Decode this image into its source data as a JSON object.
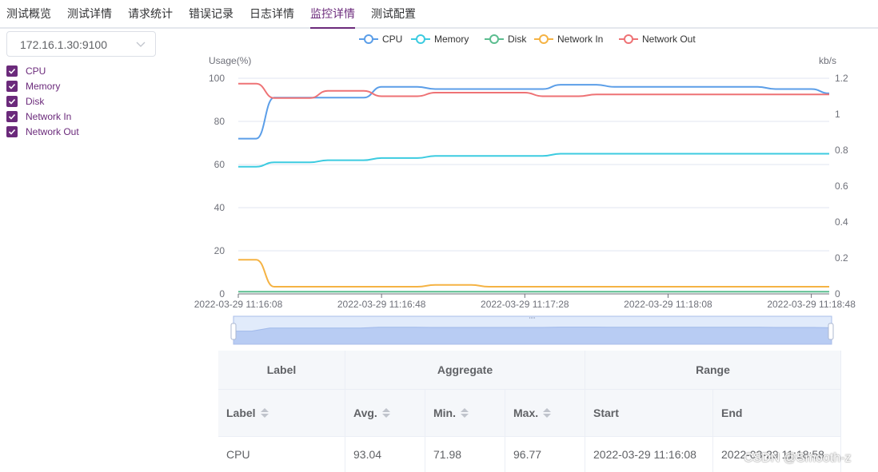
{
  "tabs": [
    "测试概览",
    "测试详情",
    "请求统计",
    "错误记录",
    "日志详情",
    "监控详情",
    "测试配置"
  ],
  "active_tab": "监控详情",
  "server_select": {
    "value": "172.16.1.30:9100"
  },
  "metrics_checkboxes": [
    {
      "label": "CPU",
      "checked": true
    },
    {
      "label": "Memory",
      "checked": true
    },
    {
      "label": "Disk",
      "checked": true
    },
    {
      "label": "Network In",
      "checked": true
    },
    {
      "label": "Network Out",
      "checked": true
    }
  ],
  "colors": {
    "accent": "#6b2a7b",
    "cpu": "#5b9ee8",
    "memory": "#3ccbe0",
    "disk": "#5bbd8f",
    "network_in": "#f5b344",
    "network_out": "#ee7275"
  },
  "chart_data": {
    "type": "line",
    "ylabel_left": "Usage(%)",
    "ylabel_right": "kb/s",
    "ylim_left": [
      0,
      100
    ],
    "ylim_right": [
      0,
      1.2
    ],
    "yticks_left": [
      "0",
      "20",
      "40",
      "60",
      "80",
      "100"
    ],
    "yticks_right": [
      "0",
      "0.2",
      "0.4",
      "0.6",
      "0.8",
      "1",
      "1.2"
    ],
    "x_tick_labels": [
      "2022-03-29 11:16:08",
      "2022-03-29 11:16:48",
      "2022-03-29 11:17:28",
      "2022-03-29 11:18:08",
      "2022-03-29 11:18:48"
    ],
    "x": [
      "11:16:08",
      "11:16:13",
      "11:16:18",
      "11:16:23",
      "11:16:28",
      "11:16:33",
      "11:16:38",
      "11:16:43",
      "11:16:48",
      "11:16:53",
      "11:16:58",
      "11:17:03",
      "11:17:08",
      "11:17:13",
      "11:17:18",
      "11:17:23",
      "11:17:28",
      "11:17:33",
      "11:17:38",
      "11:17:43",
      "11:17:48",
      "11:17:53",
      "11:17:58",
      "11:18:03",
      "11:18:08",
      "11:18:13",
      "11:18:18",
      "11:18:23",
      "11:18:28",
      "11:18:33",
      "11:18:38",
      "11:18:43",
      "11:18:48",
      "11:18:53"
    ],
    "legend_position": "top",
    "grid": true,
    "series": [
      {
        "name": "CPU",
        "axis": "left",
        "values": [
          72,
          72,
          91,
          91,
          91,
          91,
          91,
          91,
          96,
          96,
          96,
          95,
          95,
          95,
          95,
          95,
          95,
          95,
          97,
          97,
          97,
          96,
          96,
          96,
          96,
          96,
          96,
          96,
          96,
          96,
          95,
          95,
          95,
          93
        ]
      },
      {
        "name": "Memory",
        "axis": "left",
        "values": [
          59,
          59,
          61,
          61,
          61,
          62,
          62,
          62,
          63,
          63,
          63,
          64,
          64,
          64,
          64,
          64,
          64,
          64,
          65,
          65,
          65,
          65,
          65,
          65,
          65,
          65,
          65,
          65,
          65,
          65,
          65,
          65,
          65,
          65
        ]
      },
      {
        "name": "Disk",
        "axis": "left",
        "values": [
          1,
          1,
          1,
          1,
          1,
          1,
          1,
          1,
          1,
          1,
          1,
          1,
          1,
          1,
          1,
          1,
          1,
          1,
          1,
          1,
          1,
          1,
          1,
          1,
          1,
          1,
          1,
          1,
          1,
          1,
          1,
          1,
          1,
          1
        ]
      },
      {
        "name": "Network In",
        "axis": "right",
        "values": [
          0.19,
          0.19,
          0.04,
          0.04,
          0.04,
          0.04,
          0.04,
          0.04,
          0.04,
          0.04,
          0.04,
          0.05,
          0.05,
          0.05,
          0.04,
          0.04,
          0.04,
          0.04,
          0.04,
          0.04,
          0.04,
          0.04,
          0.04,
          0.04,
          0.04,
          0.04,
          0.04,
          0.04,
          0.04,
          0.04,
          0.04,
          0.04,
          0.04,
          0.04
        ]
      },
      {
        "name": "Network Out",
        "axis": "right",
        "values": [
          1.17,
          1.17,
          1.09,
          1.09,
          1.09,
          1.13,
          1.13,
          1.13,
          1.1,
          1.1,
          1.1,
          1.12,
          1.12,
          1.12,
          1.12,
          1.12,
          1.12,
          1.1,
          1.1,
          1.1,
          1.11,
          1.11,
          1.11,
          1.11,
          1.11,
          1.11,
          1.11,
          1.11,
          1.11,
          1.11,
          1.11,
          1.11,
          1.11,
          1.11
        ]
      }
    ]
  },
  "table": {
    "group_headers": {
      "label": "Label",
      "aggregate": "Aggregate",
      "range": "Range"
    },
    "columns": {
      "label": "Label",
      "avg": "Avg.",
      "min": "Min.",
      "max": "Max.",
      "start": "Start",
      "end": "End"
    },
    "rows": [
      {
        "label": "CPU",
        "avg": "93.04",
        "min": "71.98",
        "max": "96.77",
        "start": "2022-03-29 11:16:08",
        "end": "2022-03-29 11:18:58"
      }
    ]
  },
  "watermark": "CSDN @Smooth-z"
}
